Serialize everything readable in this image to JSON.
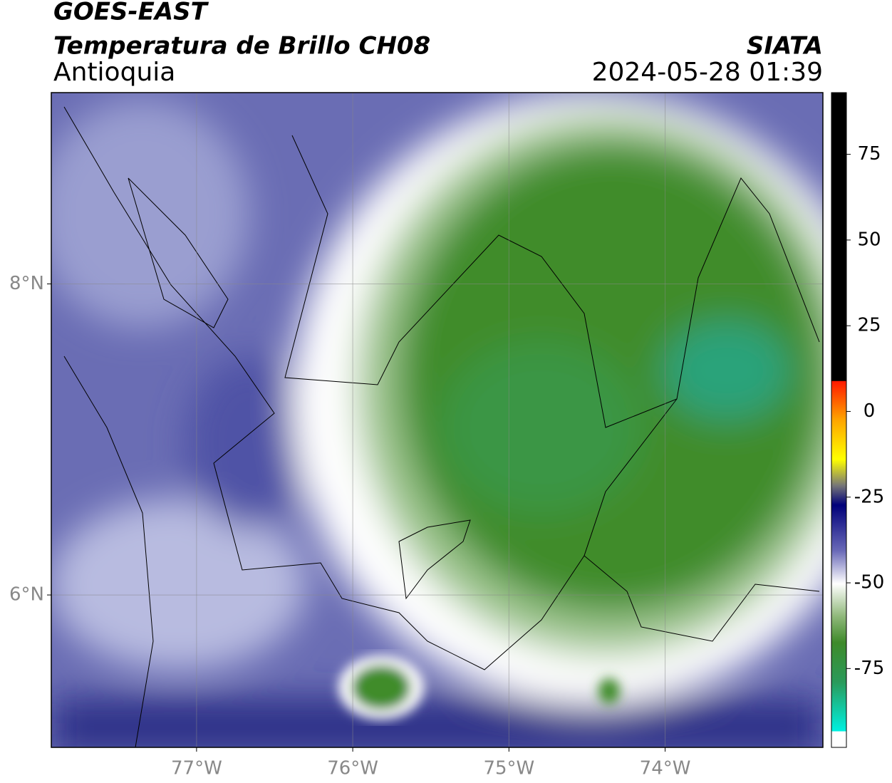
{
  "header": {
    "title": "GOES-EAST",
    "subtitle": "Temperatura de Brillo CH08",
    "region": "Antioquia",
    "source": "SIATA",
    "datetime": "2024-05-28 01:39"
  },
  "map": {
    "xlim": [
      -77.93,
      -72.99
    ],
    "xticks": [
      {
        "value": -77,
        "label": "77°W"
      },
      {
        "value": -76,
        "label": "76°W"
      },
      {
        "value": -75,
        "label": "75°W"
      },
      {
        "value": -74,
        "label": "74°W"
      }
    ],
    "ylim": [
      5.02,
      9.23
    ],
    "yticks": [
      {
        "value": 6,
        "label": "6°N"
      },
      {
        "value": 8,
        "label": "8°N"
      }
    ],
    "grid": true
  },
  "colorbar": {
    "lim": [
      -98,
      93
    ],
    "ticks": [
      75,
      50,
      25,
      0,
      -25,
      -50,
      -75
    ]
  }
}
